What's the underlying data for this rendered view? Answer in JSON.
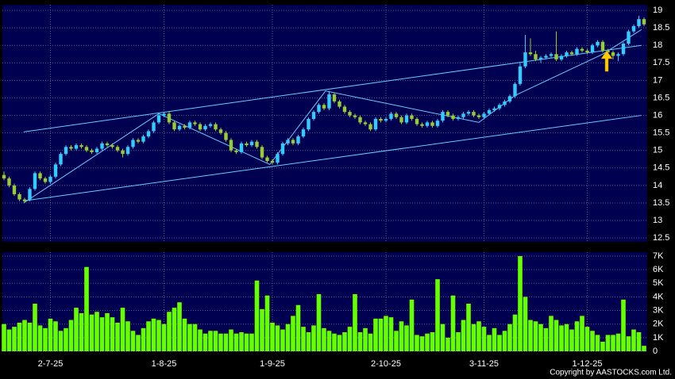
{
  "chart_data": {
    "type": "candlestick",
    "categories": [
      null,
      null,
      null,
      null,
      null,
      null,
      null,
      null,
      null,
      "2-7-25",
      null,
      null,
      null,
      null,
      null,
      null,
      null,
      null,
      null,
      null,
      null,
      null,
      null,
      null,
      null,
      null,
      null,
      null,
      null,
      null,
      null,
      "1-8-25",
      null,
      null,
      null,
      null,
      null,
      null,
      null,
      null,
      null,
      null,
      null,
      null,
      null,
      null,
      null,
      null,
      null,
      null,
      null,
      null,
      "1-9-25",
      null,
      null,
      null,
      null,
      null,
      null,
      null,
      null,
      null,
      null,
      null,
      null,
      null,
      null,
      null,
      null,
      null,
      null,
      null,
      null,
      null,
      "2-10-25",
      null,
      null,
      null,
      null,
      null,
      null,
      null,
      null,
      null,
      null,
      null,
      null,
      null,
      null,
      null,
      null,
      null,
      null,
      "3-11-25",
      null,
      null,
      null,
      null,
      null,
      null,
      null,
      null,
      null,
      null,
      null,
      null,
      null,
      null,
      null,
      null,
      null,
      null,
      null,
      "1-12-25",
      null,
      null,
      null,
      null,
      null,
      null,
      null,
      null,
      null,
      null,
      null
    ],
    "open": [
      14.3,
      14.2,
      14.0,
      13.75,
      13.6,
      13.6,
      13.9,
      14.35,
      14.2,
      14.1,
      14.25,
      14.6,
      14.9,
      15.1,
      15.05,
      15.15,
      15.1,
      15.0,
      14.95,
      15.05,
      15.2,
      15.15,
      15.1,
      15.0,
      14.9,
      15.1,
      15.3,
      15.25,
      15.4,
      15.55,
      15.8,
      16.0,
      16.05,
      15.8,
      15.6,
      15.7,
      15.65,
      15.8,
      15.75,
      15.6,
      15.7,
      15.75,
      15.6,
      15.5,
      15.3,
      15.0,
      14.95,
      15.2,
      15.15,
      15.25,
      15.1,
      14.8,
      14.7,
      14.65,
      14.9,
      15.2,
      15.3,
      15.2,
      15.4,
      15.6,
      15.9,
      16.1,
      16.3,
      16.2,
      16.6,
      16.4,
      16.25,
      16.1,
      16.0,
      15.95,
      15.8,
      15.75,
      15.6,
      15.9,
      15.85,
      15.9,
      16.05,
      15.95,
      15.8,
      16.0,
      15.9,
      15.75,
      15.7,
      15.8,
      15.7,
      15.85,
      16.1,
      16.0,
      15.9,
      15.95,
      16.05,
      16.1,
      16.0,
      15.95,
      16.05,
      16.15,
      16.2,
      16.3,
      16.4,
      16.55,
      16.9,
      17.4,
      17.8,
      17.75,
      17.6,
      17.65,
      17.7,
      17.75,
      17.6,
      17.7,
      17.8,
      17.75,
      17.9,
      17.85,
      17.8,
      18.0,
      18.1,
      17.85,
      17.8,
      17.7,
      17.75,
      18.05,
      18.4,
      18.55,
      18.75
    ],
    "high": [
      14.4,
      14.25,
      14.05,
      13.8,
      13.65,
      13.95,
      14.4,
      14.4,
      14.25,
      14.3,
      14.65,
      14.95,
      15.15,
      15.15,
      15.2,
      15.2,
      15.15,
      15.05,
      15.1,
      15.25,
      15.25,
      15.2,
      15.15,
      15.05,
      15.15,
      15.35,
      15.35,
      15.45,
      15.6,
      15.85,
      16.05,
      16.1,
      16.1,
      15.85,
      15.75,
      15.75,
      15.85,
      15.85,
      15.8,
      15.75,
      15.8,
      15.8,
      15.65,
      15.55,
      15.35,
      15.05,
      15.25,
      15.25,
      15.3,
      15.3,
      15.15,
      14.85,
      14.75,
      14.95,
      15.25,
      15.35,
      15.35,
      15.45,
      15.65,
      15.95,
      16.15,
      16.35,
      16.35,
      16.7,
      16.65,
      16.45,
      16.3,
      16.15,
      16.05,
      16.0,
      15.85,
      15.8,
      15.95,
      15.95,
      15.95,
      16.1,
      16.1,
      16.0,
      16.05,
      16.05,
      15.95,
      15.8,
      15.85,
      15.85,
      15.9,
      16.15,
      16.15,
      16.05,
      16.0,
      16.1,
      16.15,
      16.15,
      16.05,
      16.1,
      16.2,
      16.25,
      16.35,
      16.45,
      16.6,
      16.95,
      17.5,
      18.3,
      18.2,
      17.85,
      17.7,
      17.75,
      17.8,
      18.4,
      17.75,
      17.85,
      17.85,
      17.95,
      17.95,
      17.9,
      18.05,
      18.15,
      18.15,
      17.9,
      17.85,
      17.8,
      18.1,
      18.45,
      18.6,
      18.85,
      18.8
    ],
    "low": [
      14.15,
      13.95,
      13.7,
      13.55,
      13.5,
      13.55,
      13.85,
      14.15,
      14.05,
      14.05,
      14.2,
      14.55,
      14.85,
      15.0,
      15.0,
      15.05,
      14.95,
      14.9,
      14.9,
      15.0,
      15.1,
      15.05,
      14.95,
      14.8,
      14.85,
      15.05,
      15.2,
      15.2,
      15.35,
      15.5,
      15.75,
      15.95,
      15.75,
      15.55,
      15.55,
      15.6,
      15.6,
      15.7,
      15.55,
      15.55,
      15.65,
      15.55,
      15.45,
      15.25,
      14.95,
      14.9,
      14.9,
      15.1,
      15.1,
      15.05,
      14.75,
      14.65,
      14.6,
      14.6,
      14.85,
      15.15,
      15.15,
      15.15,
      15.35,
      15.55,
      15.85,
      16.05,
      16.15,
      16.15,
      16.35,
      16.2,
      16.05,
      15.95,
      15.9,
      15.75,
      15.7,
      15.55,
      15.55,
      15.8,
      15.8,
      15.85,
      15.9,
      15.75,
      15.75,
      15.85,
      15.7,
      15.65,
      15.65,
      15.65,
      15.65,
      15.8,
      15.95,
      15.85,
      15.85,
      15.9,
      16.0,
      15.95,
      15.9,
      15.9,
      16.0,
      16.1,
      16.15,
      16.25,
      16.35,
      16.5,
      16.85,
      17.35,
      17.7,
      17.55,
      17.5,
      17.6,
      17.65,
      17.55,
      17.55,
      17.65,
      17.7,
      17.7,
      17.8,
      17.75,
      17.75,
      17.95,
      17.8,
      17.75,
      17.6,
      17.55,
      17.7,
      18.0,
      18.35,
      18.5,
      18.55
    ],
    "close": [
      14.2,
      14.0,
      13.75,
      13.6,
      13.55,
      13.9,
      14.35,
      14.2,
      14.1,
      14.25,
      14.6,
      14.9,
      15.1,
      15.05,
      15.15,
      15.1,
      15.0,
      14.95,
      15.05,
      15.2,
      15.15,
      15.1,
      15.0,
      14.9,
      15.1,
      15.3,
      15.25,
      15.4,
      15.55,
      15.8,
      16.0,
      16.05,
      15.8,
      15.6,
      15.7,
      15.65,
      15.8,
      15.75,
      15.6,
      15.7,
      15.75,
      15.6,
      15.5,
      15.3,
      15.0,
      14.95,
      15.2,
      15.15,
      15.25,
      15.1,
      14.8,
      14.7,
      14.65,
      14.9,
      15.2,
      15.3,
      15.2,
      15.4,
      15.6,
      15.9,
      16.1,
      16.3,
      16.2,
      16.6,
      16.4,
      16.25,
      16.1,
      16.0,
      15.95,
      15.8,
      15.75,
      15.6,
      15.9,
      15.85,
      15.9,
      16.05,
      15.95,
      15.8,
      16.0,
      15.9,
      15.75,
      15.7,
      15.8,
      15.7,
      15.85,
      16.1,
      16.0,
      15.9,
      15.95,
      16.05,
      16.1,
      16.0,
      15.95,
      16.05,
      16.15,
      16.2,
      16.3,
      16.4,
      16.55,
      16.9,
      17.4,
      17.8,
      17.75,
      17.6,
      17.65,
      17.7,
      17.75,
      17.6,
      17.7,
      17.8,
      17.75,
      17.9,
      17.85,
      17.8,
      18.0,
      18.1,
      17.85,
      17.8,
      17.7,
      17.75,
      18.05,
      18.4,
      18.55,
      18.75,
      18.6
    ],
    "up_color": "#33ccff",
    "down_color": "#99cc33",
    "ylim": [
      12.39,
      19.16
    ],
    "yticks": [
      12.5,
      13,
      13.5,
      14,
      14.5,
      15,
      15.5,
      16,
      16.5,
      17,
      17.5,
      18,
      18.5,
      19
    ],
    "grid": true,
    "trend_lines": [
      {
        "x": [
          3.8,
          123.5
        ],
        "y": [
          15.53,
          18.0
        ]
      },
      {
        "x": [
          3.8,
          123.5
        ],
        "y": [
          13.56,
          16.0
        ]
      },
      {
        "x": [
          3.8,
          30,
          51.5,
          62.3,
          92,
          99,
          116,
          123.5
        ],
        "y": [
          13.5,
          16.05,
          14.6,
          16.7,
          15.8,
          16.57,
          17.75,
          18.45
        ]
      }
    ],
    "trend_color": "#66ccff",
    "volume": {
      "type": "bar",
      "color": "#66ff00",
      "values": [
        2000,
        1600,
        1800,
        2100,
        2300,
        2100,
        3500,
        1900,
        1700,
        2400,
        2200,
        1500,
        1700,
        2300,
        3200,
        2800,
        6200,
        2700,
        2900,
        2500,
        2800,
        2500,
        2100,
        3200,
        2200,
        1500,
        1200,
        1700,
        2200,
        2400,
        2300,
        2000,
        2900,
        3200,
        3600,
        2400,
        2000,
        2000,
        1600,
        1300,
        1500,
        1500,
        1300,
        1300,
        1600,
        1300,
        1400,
        1300,
        1300,
        5200,
        3100,
        4100,
        2100,
        1900,
        1600,
        2000,
        2600,
        3400,
        1800,
        1400,
        1900,
        4200,
        1700,
        1500,
        1300,
        1200,
        1400,
        1800,
        4200,
        1400,
        1700,
        1300,
        2400,
        2400,
        2600,
        2500,
        1500,
        2200,
        1900,
        3800,
        1200,
        1100,
        1300,
        1400,
        5300,
        2000,
        1000,
        4100,
        1400,
        2300,
        3500,
        2000,
        2200,
        1800,
        1200,
        1700,
        1200,
        1500,
        2000,
        2700,
        7000,
        4000,
        2300,
        2200,
        2000,
        1700,
        2600,
        2300,
        1900,
        2000,
        1600,
        2200,
        2600,
        1800,
        1500,
        1200,
        700,
        1200,
        1200,
        1300,
        3800,
        1100,
        1600,
        1400,
        400
      ],
      "ylim": [
        0,
        7290
      ],
      "yticks": [
        0,
        {
          "value": 1000,
          "label": "1K"
        },
        {
          "value": 2000,
          "label": "2K"
        },
        {
          "value": 3000,
          "label": "3K"
        },
        {
          "value": 4000,
          "label": "4K"
        },
        {
          "value": 5000,
          "label": "5K"
        },
        {
          "value": 6000,
          "label": "6K"
        },
        {
          "value": 7000,
          "label": "7K"
        }
      ]
    },
    "copyright": "Copyright by AASTOCKS.com Ltd."
  }
}
